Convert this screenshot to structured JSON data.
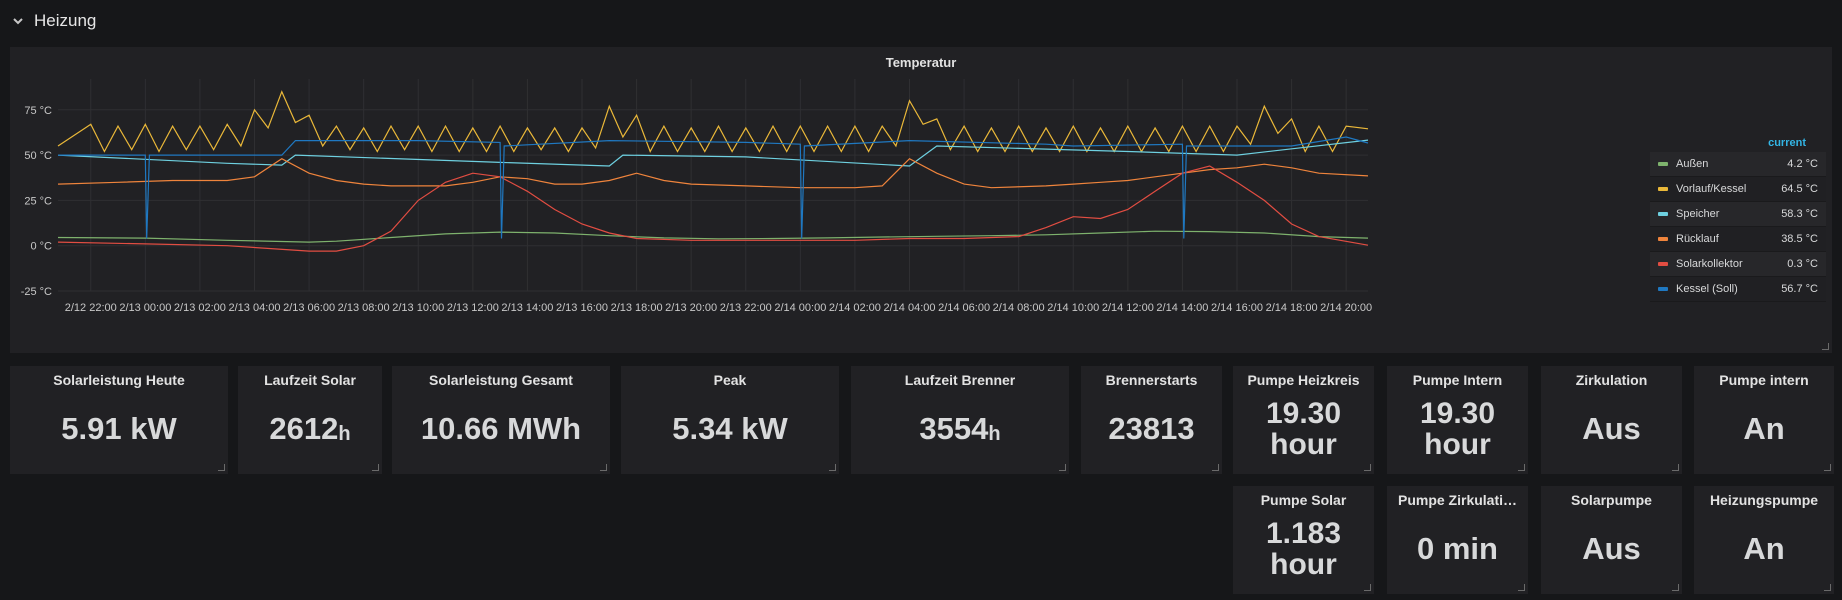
{
  "row": {
    "title": "Heizung"
  },
  "graph": {
    "title": "Temperatur",
    "legend_header": "current"
  },
  "chart_data": {
    "type": "line",
    "title": "Temperatur",
    "y_ticks": [
      "75 °C",
      "50 °C",
      "25 °C",
      "0 °C",
      "-25 °C"
    ],
    "y_tick_values": [
      75,
      50,
      25,
      0,
      -25
    ],
    "ylim": [
      -25,
      92
    ],
    "x_ticks": [
      "2/12 22:00",
      "2/13 00:00",
      "2/13 02:00",
      "2/13 04:00",
      "2/13 06:00",
      "2/13 08:00",
      "2/13 10:00",
      "2/13 12:00",
      "2/13 14:00",
      "2/13 16:00",
      "2/13 18:00",
      "2/13 20:00",
      "2/13 22:00",
      "2/14 00:00",
      "2/14 02:00",
      "2/14 04:00",
      "2/14 06:00",
      "2/14 08:00",
      "2/14 10:00",
      "2/14 12:00",
      "2/14 14:00",
      "2/14 16:00",
      "2/14 18:00",
      "2/14 20:00"
    ],
    "x_range_hours": [
      -1.2,
      46.8
    ],
    "grid": true,
    "legend_placement": "right",
    "series": [
      {
        "name": "Außen",
        "color": "#7eb26d",
        "current": "4.2 °C",
        "points": [
          [
            -1.2,
            4.5
          ],
          [
            2,
            4.2
          ],
          [
            5,
            3
          ],
          [
            8,
            2
          ],
          [
            9,
            2.5
          ],
          [
            11,
            4.5
          ],
          [
            13,
            6.5
          ],
          [
            15,
            7.5
          ],
          [
            17,
            7
          ],
          [
            19,
            5.5
          ],
          [
            21,
            4.3
          ],
          [
            23,
            3.8
          ],
          [
            25,
            4
          ],
          [
            27,
            4.3
          ],
          [
            29,
            4.8
          ],
          [
            31,
            5.2
          ],
          [
            33,
            5.5
          ],
          [
            35,
            6
          ],
          [
            37,
            7
          ],
          [
            39,
            8
          ],
          [
            41,
            7.8
          ],
          [
            43,
            7
          ],
          [
            45,
            5
          ],
          [
            46.8,
            4.2
          ]
        ]
      },
      {
        "name": "Vorlauf/Kessel",
        "color": "#eab839",
        "current": "64.5 °C",
        "points": [
          [
            -1.2,
            55
          ],
          [
            0,
            67
          ],
          [
            0.5,
            52
          ],
          [
            1,
            66
          ],
          [
            1.5,
            53
          ],
          [
            2,
            67
          ],
          [
            2.5,
            52
          ],
          [
            3,
            66
          ],
          [
            3.5,
            53
          ],
          [
            4,
            66
          ],
          [
            4.5,
            53
          ],
          [
            5,
            67
          ],
          [
            5.5,
            55
          ],
          [
            6,
            75
          ],
          [
            6.5,
            65
          ],
          [
            7,
            85
          ],
          [
            7.5,
            68
          ],
          [
            8,
            72
          ],
          [
            8.5,
            55
          ],
          [
            9,
            66
          ],
          [
            9.5,
            53
          ],
          [
            10,
            65
          ],
          [
            10.5,
            52
          ],
          [
            11,
            66
          ],
          [
            11.5,
            53
          ],
          [
            12,
            66
          ],
          [
            12.5,
            52
          ],
          [
            13,
            66
          ],
          [
            13.5,
            52
          ],
          [
            14,
            65
          ],
          [
            14.5,
            52
          ],
          [
            15,
            66
          ],
          [
            15.5,
            52
          ],
          [
            16,
            65
          ],
          [
            16.5,
            53
          ],
          [
            17,
            65
          ],
          [
            17.5,
            52
          ],
          [
            18,
            65
          ],
          [
            18.5,
            54
          ],
          [
            19,
            77
          ],
          [
            19.5,
            60
          ],
          [
            20,
            72
          ],
          [
            20.5,
            52
          ],
          [
            21,
            66
          ],
          [
            21.5,
            52
          ],
          [
            22,
            65
          ],
          [
            22.5,
            52
          ],
          [
            23,
            66
          ],
          [
            23.5,
            52
          ],
          [
            24,
            65
          ],
          [
            24.5,
            52
          ],
          [
            25,
            66
          ],
          [
            25.5,
            52
          ],
          [
            26,
            66
          ],
          [
            26.5,
            52
          ],
          [
            27,
            66
          ],
          [
            27.5,
            52
          ],
          [
            28,
            66
          ],
          [
            28.5,
            52
          ],
          [
            29,
            66
          ],
          [
            29.5,
            55
          ],
          [
            30,
            80
          ],
          [
            30.5,
            67
          ],
          [
            31,
            70
          ],
          [
            31.5,
            53
          ],
          [
            32,
            66
          ],
          [
            32.5,
            52
          ],
          [
            33,
            65
          ],
          [
            33.5,
            52
          ],
          [
            34,
            66
          ],
          [
            34.5,
            52
          ],
          [
            35,
            65
          ],
          [
            35.5,
            52
          ],
          [
            36,
            66
          ],
          [
            36.5,
            52
          ],
          [
            37,
            65
          ],
          [
            37.5,
            52
          ],
          [
            38,
            66
          ],
          [
            38.5,
            52
          ],
          [
            39,
            65
          ],
          [
            39.5,
            52
          ],
          [
            40,
            66
          ],
          [
            40.5,
            52
          ],
          [
            41,
            66
          ],
          [
            41.5,
            52
          ],
          [
            42,
            66
          ],
          [
            42.5,
            56
          ],
          [
            43,
            77
          ],
          [
            43.5,
            62
          ],
          [
            44,
            70
          ],
          [
            44.5,
            52
          ],
          [
            45,
            66
          ],
          [
            45.5,
            52
          ],
          [
            46,
            66
          ],
          [
            46.8,
            64.5
          ]
        ]
      },
      {
        "name": "Speicher",
        "color": "#6ed0e0",
        "current": "58.3 °C",
        "points": [
          [
            -1.2,
            50
          ],
          [
            5,
            45.5
          ],
          [
            7,
            44.5
          ],
          [
            7.5,
            50
          ],
          [
            15,
            46
          ],
          [
            19,
            44
          ],
          [
            19.5,
            50
          ],
          [
            24,
            49
          ],
          [
            30,
            44
          ],
          [
            31,
            55
          ],
          [
            38,
            52
          ],
          [
            42,
            50
          ],
          [
            46.8,
            58.3
          ]
        ]
      },
      {
        "name": "Rücklauf",
        "color": "#ef843c",
        "current": "38.5 °C",
        "points": [
          [
            -1.2,
            34
          ],
          [
            1,
            35
          ],
          [
            3,
            36
          ],
          [
            5,
            36
          ],
          [
            6,
            38
          ],
          [
            7,
            48
          ],
          [
            8,
            40
          ],
          [
            9,
            36
          ],
          [
            10,
            34
          ],
          [
            11,
            33
          ],
          [
            13,
            33
          ],
          [
            14,
            35
          ],
          [
            15,
            38
          ],
          [
            16,
            37
          ],
          [
            17,
            34
          ],
          [
            18,
            34
          ],
          [
            19,
            36
          ],
          [
            20,
            40
          ],
          [
            21,
            36
          ],
          [
            22,
            34
          ],
          [
            24,
            33
          ],
          [
            26,
            32
          ],
          [
            28,
            32
          ],
          [
            29,
            33
          ],
          [
            30,
            48
          ],
          [
            31,
            40
          ],
          [
            32,
            34
          ],
          [
            33,
            32
          ],
          [
            35,
            33
          ],
          [
            36,
            34
          ],
          [
            37,
            35
          ],
          [
            38,
            36
          ],
          [
            39,
            38
          ],
          [
            40,
            40
          ],
          [
            41,
            42
          ],
          [
            42,
            43
          ],
          [
            43,
            45
          ],
          [
            44,
            43
          ],
          [
            45,
            40
          ],
          [
            46.8,
            38.5
          ]
        ]
      },
      {
        "name": "Solarkollektor",
        "color": "#e24d42",
        "current": "0.3 °C",
        "points": [
          [
            -1.2,
            2
          ],
          [
            2,
            1
          ],
          [
            5,
            0
          ],
          [
            8,
            -3
          ],
          [
            9,
            -3
          ],
          [
            10,
            0
          ],
          [
            11,
            8
          ],
          [
            12,
            25
          ],
          [
            13,
            35
          ],
          [
            14,
            40
          ],
          [
            15,
            38
          ],
          [
            16,
            30
          ],
          [
            17,
            20
          ],
          [
            18,
            12
          ],
          [
            19,
            7
          ],
          [
            20,
            4
          ],
          [
            22,
            3
          ],
          [
            24,
            3
          ],
          [
            26,
            3
          ],
          [
            28,
            3
          ],
          [
            30,
            4
          ],
          [
            32,
            4
          ],
          [
            34,
            5
          ],
          [
            35,
            10
          ],
          [
            36,
            16
          ],
          [
            37,
            15
          ],
          [
            38,
            20
          ],
          [
            39,
            30
          ],
          [
            40,
            40
          ],
          [
            41,
            44
          ],
          [
            42,
            35
          ],
          [
            43,
            25
          ],
          [
            44,
            12
          ],
          [
            45,
            5
          ],
          [
            46.8,
            0.3
          ]
        ]
      },
      {
        "name": "Kessel (Soll)",
        "color": "#1f78c1",
        "current": "56.7 °C",
        "points": [
          [
            -1.2,
            50
          ],
          [
            2,
            50
          ],
          [
            2.05,
            4
          ],
          [
            2.15,
            50
          ],
          [
            7,
            50
          ],
          [
            7.5,
            58
          ],
          [
            12,
            58
          ],
          [
            15,
            57
          ],
          [
            15.05,
            4
          ],
          [
            15.15,
            55
          ],
          [
            19,
            58
          ],
          [
            24,
            57
          ],
          [
            26,
            56
          ],
          [
            26.05,
            4
          ],
          [
            26.15,
            55
          ],
          [
            30,
            58
          ],
          [
            35,
            56
          ],
          [
            36,
            55
          ],
          [
            40,
            56
          ],
          [
            40.05,
            4
          ],
          [
            40.15,
            55
          ],
          [
            44,
            55
          ],
          [
            46,
            60
          ],
          [
            46.8,
            56.7
          ]
        ]
      }
    ]
  },
  "stats_row1": [
    {
      "title": "Solarleistung Heute",
      "value": "5.91 kW"
    },
    {
      "title": "Laufzeit Solar",
      "value": "2612",
      "unit": "h"
    },
    {
      "title": "Solarleistung Gesamt",
      "value": "10.66 MWh"
    },
    {
      "title": "Peak",
      "value": "5.34 kW"
    },
    {
      "title": "Laufzeit Brenner",
      "value": "3554",
      "unit": "h"
    },
    {
      "title": "Brennerstarts",
      "value": "23813"
    },
    {
      "title": "Pumpe Heizkreis",
      "value": "19.30",
      "value2": "hour"
    },
    {
      "title": "Pumpe Intern",
      "value": "19.30",
      "value2": "hour"
    },
    {
      "title": "Zirkulation",
      "value": "Aus"
    },
    {
      "title": "Pumpe intern",
      "value": "An"
    }
  ],
  "stats_row2": [
    {
      "title": "Pumpe Solar",
      "value": "1.183",
      "value2": "hour"
    },
    {
      "title": "Pumpe Zirkulati…",
      "value": "0 min"
    },
    {
      "title": "Solarpumpe",
      "value": "Aus"
    },
    {
      "title": "Heizungspumpe",
      "value": "An"
    }
  ]
}
